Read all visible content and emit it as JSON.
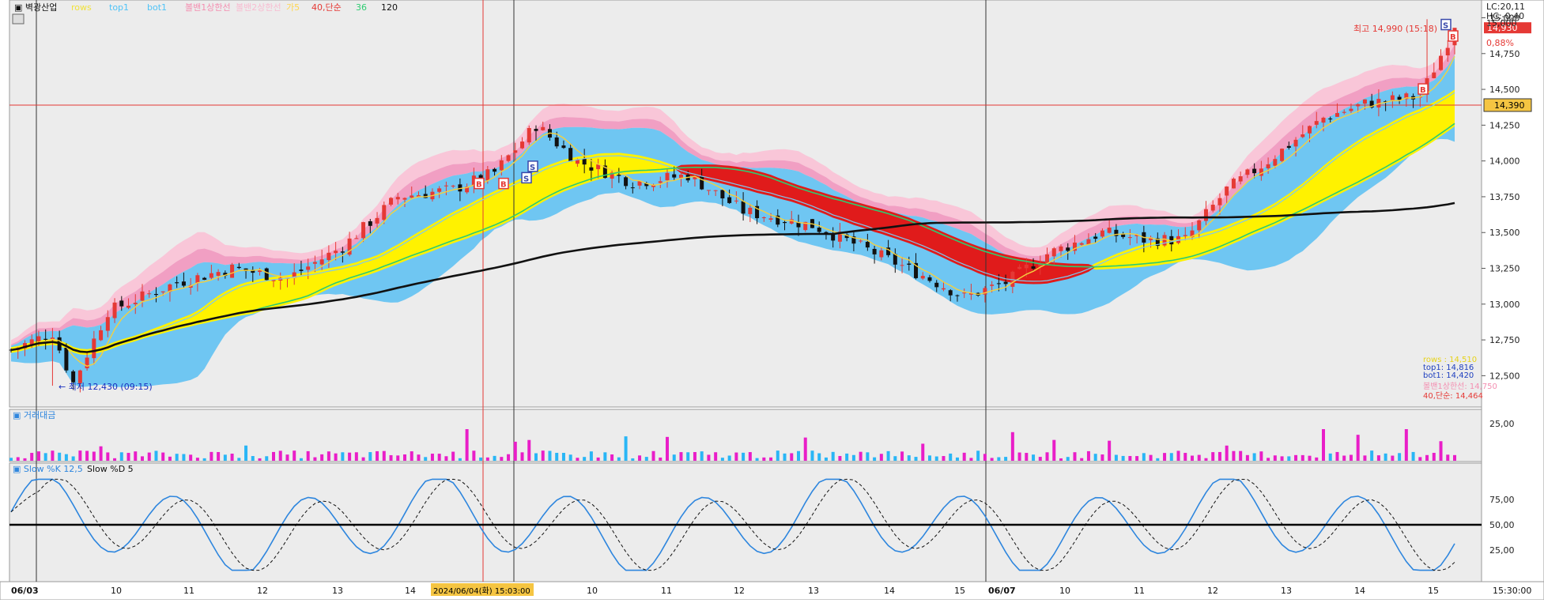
{
  "chart_data": [
    {
      "type": "candlestick",
      "symbol": "벽광산업",
      "legend": [
        {
          "name": "rows",
          "color": "#f1e23a"
        },
        {
          "name": "top1",
          "color": "#4fc3f7"
        },
        {
          "name": "bot1",
          "color": "#4fc3f7"
        },
        {
          "name": "볼밴1상한선",
          "color": "#f48fb1"
        },
        {
          "name": "볼밴2상한선",
          "color": "#f8bbd0"
        },
        {
          "name": "가5",
          "color": "#ffd54f"
        },
        {
          "name": "40,단순",
          "color": "#e53935"
        },
        {
          "name": "36",
          "color": "#2ecc71"
        },
        {
          "name": "120",
          "color": "#111111"
        }
      ],
      "y_ticks": [
        12500,
        12750,
        13000,
        13250,
        13500,
        13750,
        14000,
        14250,
        14500,
        14750,
        15000
      ],
      "y_tick_labels": [
        "12,500",
        "12,750",
        "13,000",
        "13,250",
        "13,500",
        "13,750",
        "14,000",
        "14,250",
        "14,500",
        "14,750",
        "15,000"
      ],
      "ylim": [
        12320,
        15080
      ],
      "x_tick_labels": [
        "06/03",
        "10",
        "11",
        "12",
        "13",
        "14",
        "2024/06/04(화) 15:03:00",
        "10",
        "11",
        "12",
        "13",
        "14",
        "15",
        "06/07",
        "10",
        "11",
        "12",
        "13",
        "14",
        "15",
        "15:30:00"
      ],
      "crosshair_price_label": "14,390",
      "crosshair_price": 14390,
      "crosshair_time_label": "2024/06/04(화) 15:03:00",
      "last_price_label": "14,930",
      "last_price": 14930,
      "top_right_info": [
        "LC:20,11",
        "HC:-0,40",
        "15,000",
        "0,88%"
      ],
      "max_annotation": "최고 14,990 (15:18)",
      "max_price": 14990,
      "min_annotation": "최저 12,430 (09:15)",
      "min_price": 12430,
      "signals": [
        {
          "label": "B",
          "price": 13840
        },
        {
          "label": "B",
          "price": 13840
        },
        {
          "label": "S",
          "price": 13960
        },
        {
          "label": "S",
          "price": 13880
        },
        {
          "label": "B",
          "price": 14500
        },
        {
          "label": "S",
          "price": 14950
        },
        {
          "label": "B",
          "price": 14870
        }
      ],
      "legend_values": [
        {
          "text": "rows : 14,510",
          "color": "#e6d21a"
        },
        {
          "text": "top1: 14,816",
          "color": "#1e3fbf"
        },
        {
          "text": "bot1: 14,420",
          "color": "#1e3fbf"
        },
        {
          "text": "볼밴1상한선: 14,750",
          "color": "#f48fb1"
        },
        {
          "text": "40,단순: 14,464",
          "color": "#e53935"
        }
      ]
    },
    {
      "type": "bar",
      "title": "거래대금",
      "y_tick_labels": [
        "25,00"
      ],
      "colors": {
        "up": "#e91ec8",
        "down": "#29b6f6"
      }
    },
    {
      "type": "line",
      "legend": [
        {
          "name": "Slow %K 12,5",
          "color": "#2e86de"
        },
        {
          "name": "Slow %D 5",
          "color": "#111111"
        }
      ],
      "ylim": [
        0,
        100
      ],
      "y_ticks": [
        25,
        50,
        75
      ],
      "y_tick_labels": [
        "25,00",
        "50,00",
        "75,00"
      ],
      "center_line": 50
    }
  ]
}
